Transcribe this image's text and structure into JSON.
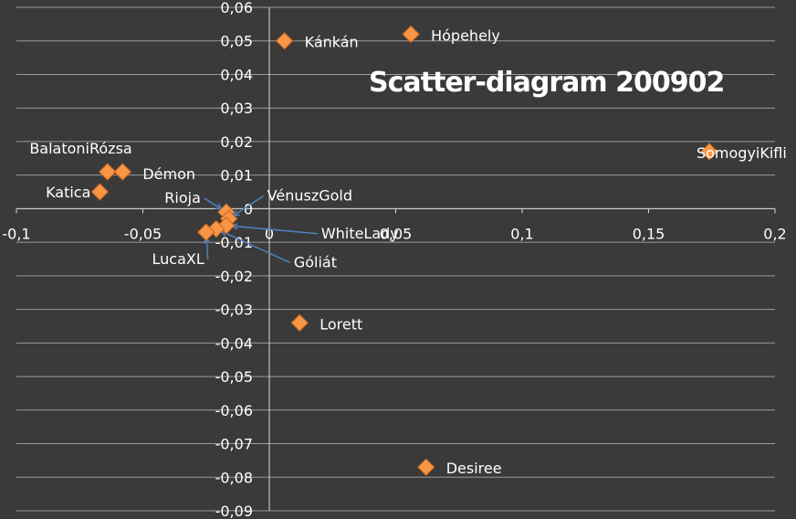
{
  "chart_data": {
    "type": "scatter",
    "title": "Scatter-diagram 200902",
    "xlim": [
      -0.1,
      0.2
    ],
    "ylim": [
      -0.09,
      0.06
    ],
    "grid": "horizontal",
    "x_ticks": [
      "-0,1",
      "-0,05",
      "0",
      "0,05",
      "0,1",
      "0,15",
      "0,2"
    ],
    "y_ticks": [
      "0,06",
      "0,05",
      "0,04",
      "0,03",
      "0,02",
      "0,01",
      "0",
      "-0,01",
      "-0,02",
      "-0,03",
      "-0,04",
      "-0,05",
      "-0,06",
      "-0,07",
      "-0,08",
      "-0,09"
    ],
    "marker_color": "#f79646",
    "points": [
      {
        "name": "Kánkán",
        "x": 0.006,
        "y": 0.05
      },
      {
        "name": "Hópehely",
        "x": 0.056,
        "y": 0.052
      },
      {
        "name": "SomogyiKifli",
        "x": 0.174,
        "y": 0.017
      },
      {
        "name": "BalatoniRózsa",
        "x": -0.064,
        "y": 0.011
      },
      {
        "name": "Démon",
        "x": -0.058,
        "y": 0.011
      },
      {
        "name": "Katica",
        "x": -0.067,
        "y": 0.005
      },
      {
        "name": "Rioja",
        "x": -0.017,
        "y": -0.001
      },
      {
        "name": "VénuszGold",
        "x": -0.016,
        "y": -0.003
      },
      {
        "name": "WhiteLady",
        "x": -0.017,
        "y": -0.005
      },
      {
        "name": "Góliát",
        "x": -0.021,
        "y": -0.006
      },
      {
        "name": "LucaXL",
        "x": -0.025,
        "y": -0.007
      },
      {
        "name": "Lorett",
        "x": 0.012,
        "y": -0.034
      },
      {
        "name": "Desiree",
        "x": 0.062,
        "y": -0.077
      }
    ]
  }
}
